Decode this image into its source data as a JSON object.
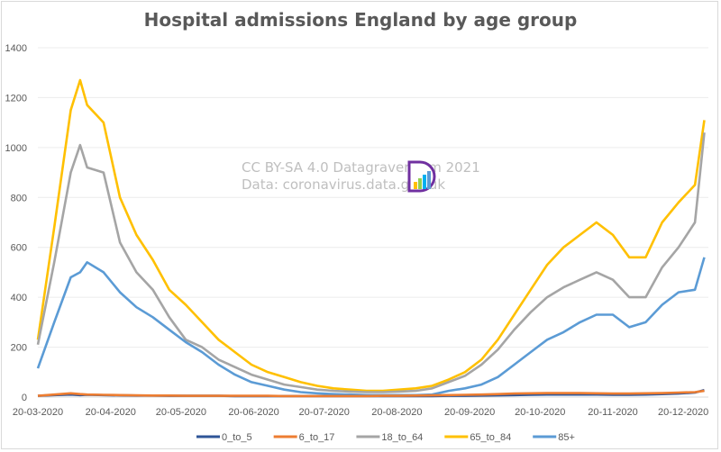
{
  "chart_data": {
    "type": "line",
    "title": "Hospital admissions England by age group",
    "xlabel": "",
    "ylabel": "",
    "x_start": "2020-03-20",
    "x_unit": "days since start",
    "ylim": [
      0,
      1400
    ],
    "yticks": [
      "0",
      "200",
      "400",
      "600",
      "800",
      "1000",
      "1200",
      "1400"
    ],
    "xticks": [
      {
        "label": "20-03-2020",
        "day": 0
      },
      {
        "label": "20-04-2020",
        "day": 31
      },
      {
        "label": "20-05-2020",
        "day": 61
      },
      {
        "label": "20-06-2020",
        "day": 92
      },
      {
        "label": "20-07-2020",
        "day": 122
      },
      {
        "label": "20-08-2020",
        "day": 153
      },
      {
        "label": "20-09-2020",
        "day": 184
      },
      {
        "label": "20-10-2020",
        "day": 214
      },
      {
        "label": "20-11-2020",
        "day": 245
      },
      {
        "label": "20-12-2020",
        "day": 275
      }
    ],
    "grid": true,
    "legend_position": "bottom",
    "x": [
      0,
      7,
      14,
      18,
      21,
      28,
      35,
      42,
      49,
      56,
      63,
      70,
      77,
      84,
      91,
      98,
      105,
      112,
      119,
      126,
      133,
      140,
      147,
      154,
      161,
      168,
      175,
      182,
      189,
      196,
      203,
      210,
      217,
      224,
      231,
      238,
      245,
      252,
      259,
      266,
      273,
      280,
      284
    ],
    "series": [
      {
        "name": "0_to_5",
        "color": "#2f5597",
        "values": [
          5,
          8,
          10,
          8,
          9,
          8,
          7,
          6,
          6,
          5,
          5,
          5,
          5,
          4,
          4,
          4,
          4,
          4,
          4,
          4,
          4,
          4,
          4,
          4,
          4,
          4,
          5,
          5,
          6,
          7,
          8,
          9,
          10,
          10,
          10,
          10,
          9,
          9,
          10,
          12,
          14,
          18,
          28
        ]
      },
      {
        "name": "6_to_17",
        "color": "#ed7d31",
        "values": [
          5,
          10,
          15,
          12,
          10,
          9,
          8,
          7,
          6,
          6,
          5,
          5,
          5,
          5,
          5,
          5,
          4,
          4,
          4,
          4,
          4,
          4,
          5,
          5,
          6,
          7,
          8,
          9,
          10,
          12,
          14,
          15,
          16,
          16,
          16,
          15,
          14,
          14,
          15,
          16,
          18,
          20,
          25
        ]
      },
      {
        "name": "18_to_64",
        "color": "#a5a5a5",
        "values": [
          210,
          540,
          900,
          1010,
          920,
          900,
          620,
          500,
          430,
          320,
          230,
          200,
          150,
          120,
          90,
          70,
          50,
          40,
          30,
          25,
          22,
          20,
          20,
          22,
          25,
          35,
          60,
          85,
          130,
          190,
          270,
          340,
          400,
          440,
          470,
          500,
          470,
          400,
          400,
          520,
          600,
          700,
          1060
        ]
      },
      {
        "name": "65_to_84",
        "color": "#ffc000",
        "values": [
          230,
          680,
          1150,
          1270,
          1170,
          1100,
          800,
          650,
          550,
          430,
          370,
          300,
          230,
          180,
          130,
          100,
          80,
          60,
          45,
          35,
          30,
          25,
          25,
          30,
          35,
          45,
          70,
          100,
          150,
          230,
          330,
          430,
          530,
          600,
          650,
          700,
          650,
          560,
          560,
          700,
          780,
          850,
          1110
        ]
      },
      {
        "name": "85+",
        "color": "#5b9bd5",
        "values": [
          115,
          300,
          480,
          500,
          540,
          500,
          420,
          360,
          320,
          270,
          220,
          180,
          130,
          90,
          60,
          45,
          30,
          20,
          15,
          12,
          10,
          8,
          8,
          8,
          8,
          10,
          25,
          35,
          50,
          80,
          130,
          180,
          230,
          260,
          300,
          330,
          330,
          280,
          300,
          370,
          420,
          430,
          560
        ]
      }
    ]
  },
  "watermark": {
    "line1": "CC BY-SA 4.0  Datagraver.com 2021",
    "line2": "Data: coronavirus.data.gov.uk",
    "logo": "Datagraver D logo"
  }
}
